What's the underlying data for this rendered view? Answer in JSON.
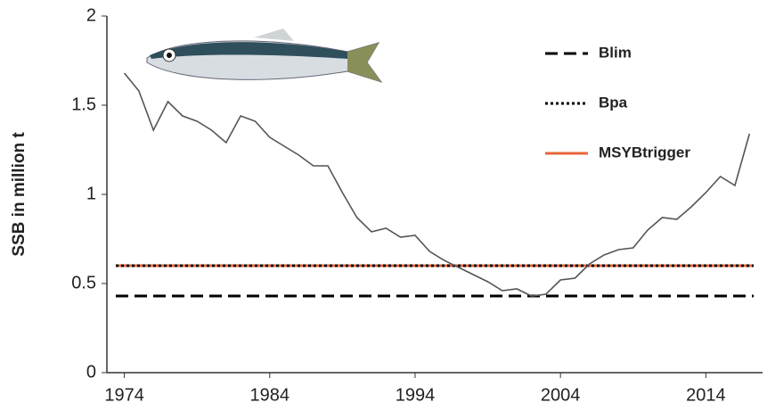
{
  "chart_data": {
    "type": "line",
    "y_label": "SSB in million t",
    "x": [
      1974,
      1975,
      1976,
      1977,
      1978,
      1979,
      1980,
      1981,
      1982,
      1983,
      1984,
      1985,
      1986,
      1987,
      1988,
      1989,
      1990,
      1991,
      1992,
      1993,
      1994,
      1995,
      1996,
      1997,
      1998,
      1999,
      2000,
      2001,
      2002,
      2003,
      2004,
      2005,
      2006,
      2007,
      2008,
      2009,
      2010,
      2011,
      2012,
      2013,
      2014,
      2015,
      2016,
      2017
    ],
    "values": [
      1.68,
      1.58,
      1.36,
      1.52,
      1.44,
      1.41,
      1.36,
      1.29,
      1.44,
      1.41,
      1.32,
      1.27,
      1.22,
      1.16,
      1.16,
      1.01,
      0.87,
      0.79,
      0.81,
      0.76,
      0.77,
      0.68,
      0.63,
      0.59,
      0.55,
      0.51,
      0.46,
      0.47,
      0.43,
      0.44,
      0.52,
      0.53,
      0.61,
      0.66,
      0.69,
      0.7,
      0.8,
      0.87,
      0.86,
      0.93,
      1.01,
      1.1,
      1.05,
      1.34
    ],
    "color": "#555555",
    "reference_lines": [
      {
        "name": "Blim",
        "value": 0.43,
        "color": "#000000",
        "dash": "dashed"
      },
      {
        "name": "Bpa",
        "value": 0.6,
        "color": "#000000",
        "dash": "dotted"
      },
      {
        "name": "MSYBtrigger",
        "value": 0.6,
        "color": "#e8643c",
        "dash": "solid"
      }
    ],
    "xlim": [
      1972.8,
      2017.9
    ],
    "ylim": [
      0,
      2
    ],
    "xticks": [
      1974,
      1984,
      1994,
      2004,
      2014
    ],
    "yticks": [
      0,
      0.5,
      1,
      1.5,
      2
    ]
  }
}
